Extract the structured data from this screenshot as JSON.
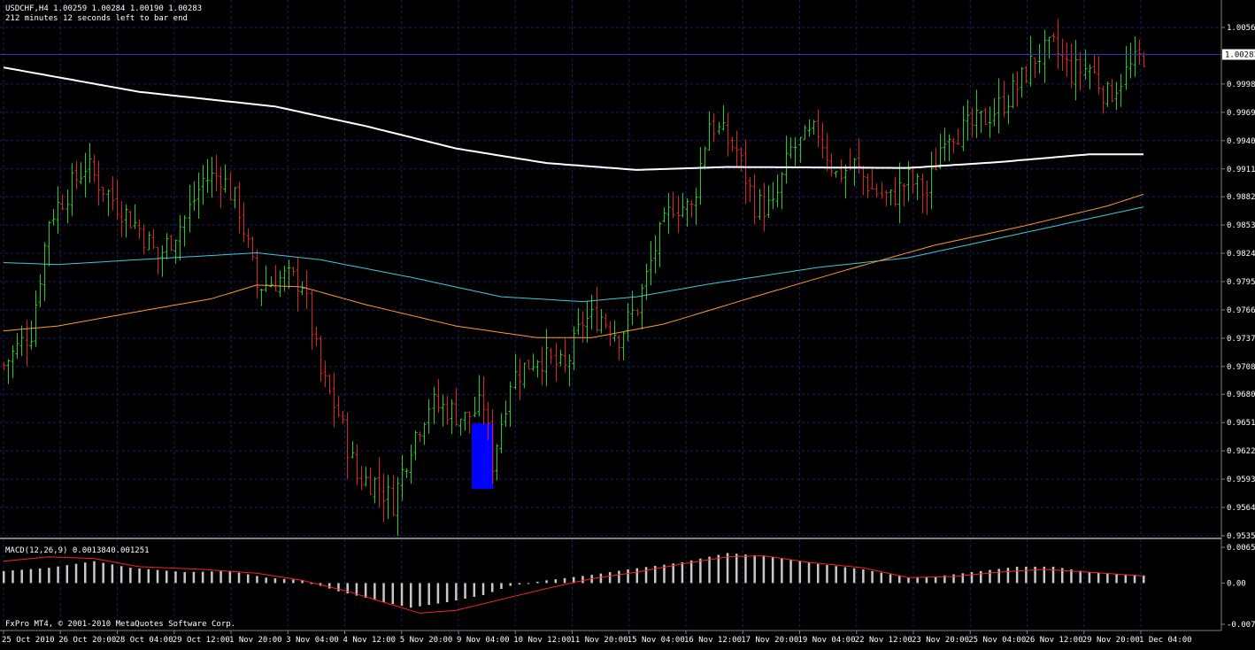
{
  "header": {
    "symbol_line": "USDCHF,H4  1.00259 1.00284 1.00190 1.00283",
    "timer_line": "212 minutes 12 seconds left to bar end"
  },
  "macd_label": "MACD(12,26,9) 0.0013840.001251",
  "copyright": "FxPro MT4, © 2001-2010 MetaQuotes Software Corp.",
  "current_price_label": "1.00283",
  "colors": {
    "background": "#000000",
    "grid": "#1c1c6e",
    "bull": "#22cc22",
    "bear": "#dd2222",
    "ma_white": "#ffffff",
    "ma_cyan": "#40c8d8",
    "ma_orange": "#ff9a30",
    "macd_hist": "#c8c8c8",
    "macd_signal": "#ff2020",
    "highlight": "#0000ff",
    "price_line": "#3030cc",
    "axis_text": "#ffffff"
  },
  "chart_data": {
    "type": "candlestick",
    "timeframe": "H4",
    "price_axis": {
      "ticks": [
        "1.00560",
        "0.99980",
        "0.99690",
        "0.99400",
        "0.99110",
        "0.98825",
        "0.98535",
        "0.98245",
        "0.97955",
        "0.97665",
        "0.97375",
        "0.97085",
        "0.96800",
        "0.96510",
        "0.96220",
        "0.95930",
        "0.95640",
        "0.95350"
      ],
      "current_price": 1.00283,
      "range": [
        0.9535,
        1.0056
      ]
    },
    "macd_axis": {
      "ticks": [
        "0.00655",
        "0.00",
        "-0.00755"
      ],
      "range": [
        -0.00755,
        0.00655
      ]
    },
    "time_axis": {
      "labels": [
        "25 Oct 2010",
        "26 Oct 20:00",
        "28 Oct 04:00",
        "29 Oct 12:00",
        "1 Nov 20:00",
        "3 Nov 04:00",
        "4 Nov 12:00",
        "5 Nov 20:00",
        "9 Nov 04:00",
        "10 Nov 12:00",
        "11 Nov 20:00",
        "15 Nov 04:00",
        "16 Nov 12:00",
        "17 Nov 20:00",
        "19 Nov 04:00",
        "22 Nov 12:00",
        "23 Nov 20:00",
        "25 Nov 04:00",
        "26 Nov 12:00",
        "29 Nov 20:00",
        "1 Dec 04:00"
      ]
    },
    "highlight_box": {
      "from_price": 0.965,
      "to_price": 0.9583
    },
    "close_anchors": [
      [
        0,
        0.971
      ],
      [
        6,
        0.9745
      ],
      [
        10,
        0.986
      ],
      [
        18,
        0.9915
      ],
      [
        24,
        0.988
      ],
      [
        30,
        0.985
      ],
      [
        34,
        0.982
      ],
      [
        40,
        0.986
      ],
      [
        44,
        0.99
      ],
      [
        48,
        0.9905
      ],
      [
        52,
        0.987
      ],
      [
        56,
        0.979
      ],
      [
        62,
        0.98
      ],
      [
        66,
        0.9795
      ],
      [
        70,
        0.97
      ],
      [
        74,
        0.966
      ],
      [
        78,
        0.9595
      ],
      [
        82,
        0.959
      ],
      [
        86,
        0.957
      ],
      [
        90,
        0.963
      ],
      [
        94,
        0.967
      ],
      [
        98,
        0.9665
      ],
      [
        102,
        0.9655
      ],
      [
        106,
        0.967
      ],
      [
        108,
        0.961
      ],
      [
        112,
        0.9695
      ],
      [
        118,
        0.972
      ],
      [
        124,
        0.9705
      ],
      [
        128,
        0.9755
      ],
      [
        132,
        0.976
      ],
      [
        136,
        0.974
      ],
      [
        140,
        0.977
      ],
      [
        144,
        0.983
      ],
      [
        148,
        0.9875
      ],
      [
        152,
        0.987
      ],
      [
        156,
        0.996
      ],
      [
        162,
        0.993
      ],
      [
        166,
        0.9875
      ],
      [
        170,
        0.987
      ],
      [
        174,
        0.993
      ],
      [
        180,
        0.995
      ],
      [
        184,
        0.9905
      ],
      [
        188,
        0.9915
      ],
      [
        192,
        0.989
      ],
      [
        196,
        0.988
      ],
      [
        200,
        0.99
      ],
      [
        204,
        0.9885
      ],
      [
        208,
        0.995
      ],
      [
        212,
        0.995
      ],
      [
        216,
        0.996
      ],
      [
        220,
        0.9975
      ],
      [
        224,
        0.9995
      ],
      [
        228,
        1.0025
      ],
      [
        232,
        1.0035
      ],
      [
        236,
        1.001
      ],
      [
        240,
        1.0015
      ],
      [
        244,
        0.9985
      ],
      [
        248,
        1.001
      ],
      [
        252,
        1.0028
      ]
    ],
    "ma_white_anchors": [
      [
        0,
        1.0015
      ],
      [
        30,
        0.999
      ],
      [
        60,
        0.9975
      ],
      [
        80,
        0.9955
      ],
      [
        100,
        0.9932
      ],
      [
        120,
        0.9917
      ],
      [
        140,
        0.991
      ],
      [
        160,
        0.9913
      ],
      [
        200,
        0.9912
      ],
      [
        220,
        0.9918
      ],
      [
        240,
        0.9926
      ],
      [
        252,
        0.9926
      ]
    ],
    "ma_cyan_anchors": [
      [
        0,
        0.9815
      ],
      [
        12,
        0.9813
      ],
      [
        30,
        0.9818
      ],
      [
        56,
        0.9825
      ],
      [
        70,
        0.9818
      ],
      [
        90,
        0.98
      ],
      [
        110,
        0.978
      ],
      [
        128,
        0.9775
      ],
      [
        140,
        0.978
      ],
      [
        156,
        0.9793
      ],
      [
        180,
        0.981
      ],
      [
        200,
        0.982
      ],
      [
        220,
        0.984
      ],
      [
        240,
        0.986
      ],
      [
        252,
        0.9872
      ]
    ],
    "ma_orange_anchors": [
      [
        0,
        0.9745
      ],
      [
        12,
        0.975
      ],
      [
        30,
        0.9765
      ],
      [
        46,
        0.9778
      ],
      [
        56,
        0.9792
      ],
      [
        66,
        0.979
      ],
      [
        80,
        0.9772
      ],
      [
        100,
        0.975
      ],
      [
        118,
        0.9738
      ],
      [
        130,
        0.9738
      ],
      [
        146,
        0.9752
      ],
      [
        166,
        0.978
      ],
      [
        186,
        0.9807
      ],
      [
        206,
        0.9833
      ],
      [
        226,
        0.9853
      ],
      [
        244,
        0.9873
      ],
      [
        252,
        0.9885
      ]
    ],
    "macd_hist_anchors": [
      [
        0,
        0.0022
      ],
      [
        10,
        0.0028
      ],
      [
        20,
        0.004
      ],
      [
        28,
        0.0028
      ],
      [
        40,
        0.002
      ],
      [
        50,
        0.0022
      ],
      [
        58,
        0.001
      ],
      [
        66,
        0.0005
      ],
      [
        74,
        -0.0015
      ],
      [
        84,
        -0.0035
      ],
      [
        90,
        -0.0045
      ],
      [
        98,
        -0.0035
      ],
      [
        106,
        -0.0022
      ],
      [
        112,
        -0.0005
      ],
      [
        120,
        0.0005
      ],
      [
        130,
        0.0015
      ],
      [
        138,
        0.0025
      ],
      [
        150,
        0.0038
      ],
      [
        160,
        0.0055
      ],
      [
        170,
        0.0048
      ],
      [
        180,
        0.0035
      ],
      [
        190,
        0.0025
      ],
      [
        200,
        0.001
      ],
      [
        206,
        0.0012
      ],
      [
        214,
        0.002
      ],
      [
        224,
        0.003
      ],
      [
        232,
        0.003
      ],
      [
        240,
        0.002
      ],
      [
        252,
        0.0014
      ]
    ],
    "macd_signal_anchors": [
      [
        0,
        0.004
      ],
      [
        10,
        0.0048
      ],
      [
        20,
        0.0045
      ],
      [
        30,
        0.003
      ],
      [
        44,
        0.0025
      ],
      [
        56,
        0.0018
      ],
      [
        66,
        0.0005
      ],
      [
        76,
        -0.0015
      ],
      [
        84,
        -0.0035
      ],
      [
        92,
        -0.0055
      ],
      [
        100,
        -0.005
      ],
      [
        110,
        -0.003
      ],
      [
        120,
        -0.001
      ],
      [
        130,
        0.0008
      ],
      [
        140,
        0.002
      ],
      [
        150,
        0.0035
      ],
      [
        160,
        0.0048
      ],
      [
        168,
        0.005
      ],
      [
        178,
        0.0038
      ],
      [
        190,
        0.0028
      ],
      [
        200,
        0.001
      ],
      [
        210,
        0.0012
      ],
      [
        220,
        0.002
      ],
      [
        230,
        0.0025
      ],
      [
        240,
        0.002
      ],
      [
        252,
        0.0013
      ]
    ]
  }
}
